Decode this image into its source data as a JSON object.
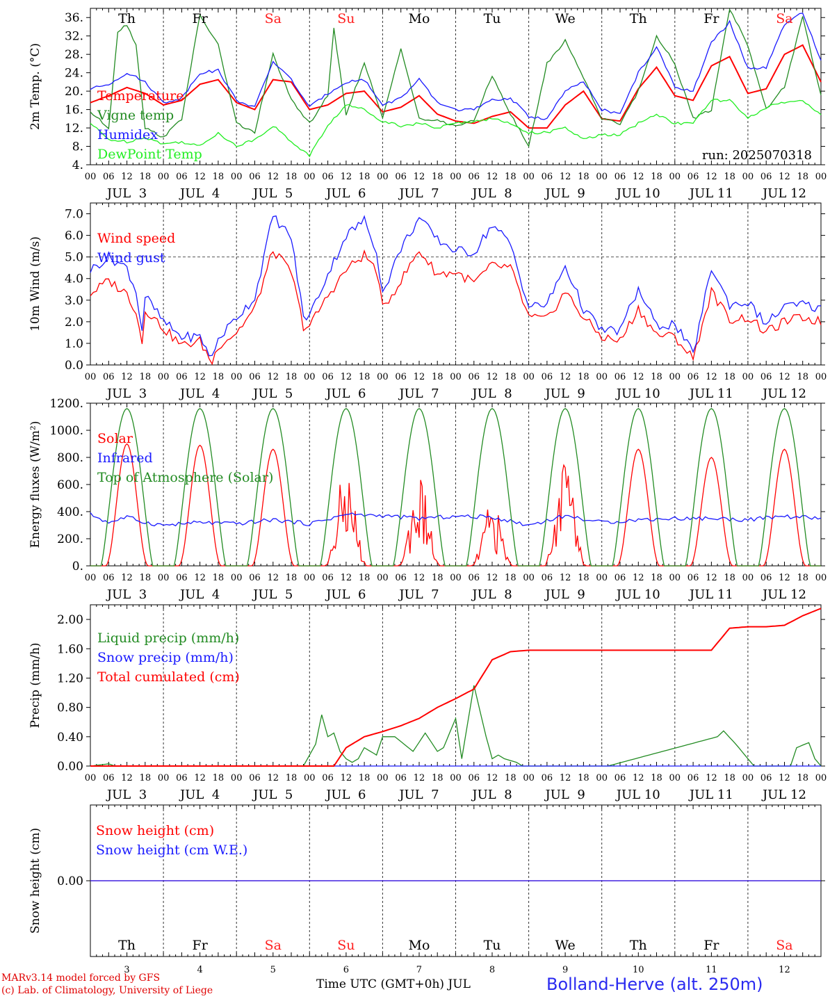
{
  "footer": {
    "model": "MARv3.14 model forced by GFS",
    "lab": "(c) Lab. of Climatology, University of Liege",
    "time_axis": "Time UTC (GMT+0h) JUL",
    "station": "Bolland-Herve (alt. 250m)"
  },
  "run_label": "run: 2025070318",
  "colors": {
    "red": "#ff0000",
    "blue": "#1a1aff",
    "green": "#228b22",
    "lightgreen": "#22ee22",
    "grid": "#000000"
  },
  "days": [
    "3",
    "4",
    "5",
    "6",
    "7",
    "8",
    "9",
    "10",
    "11",
    "12"
  ],
  "day_labels": [
    "JUL  3",
    "JUL  4",
    "JUL  5",
    "JUL  6",
    "JUL  7",
    "JUL  8",
    "JUL  9",
    "JUL 10",
    "JUL 11",
    "JUL 12"
  ],
  "weekdays": [
    {
      "name": "Th",
      "weekend": false
    },
    {
      "name": "Fr",
      "weekend": false
    },
    {
      "name": "Sa",
      "weekend": true
    },
    {
      "name": "Su",
      "weekend": true
    },
    {
      "name": "Mo",
      "weekend": false
    },
    {
      "name": "Tu",
      "weekend": false
    },
    {
      "name": "We",
      "weekend": false
    },
    {
      "name": "Th",
      "weekend": false
    },
    {
      "name": "Fr",
      "weekend": false
    },
    {
      "name": "Sa",
      "weekend": true
    }
  ],
  "hour_ticks": [
    "00",
    "06",
    "12",
    "18"
  ],
  "chart_data": [
    {
      "type": "line",
      "ylabel": "2m Temp. (°C)",
      "ylim": [
        4,
        38
      ],
      "yticks": [
        "4.",
        "8.",
        "12.",
        "16.",
        "20.",
        "24.",
        "28.",
        "32.",
        "36."
      ],
      "x_unit": "hours since JUL 3 00 UTC",
      "series": [
        {
          "name": "Temperature",
          "color": "red",
          "x": [
            0,
            6,
            12,
            18,
            24,
            30,
            36,
            42,
            48,
            54,
            60,
            66,
            72,
            78,
            84,
            90,
            96,
            102,
            108,
            114,
            120,
            126,
            132,
            138,
            144,
            150,
            156,
            162,
            168,
            174,
            180,
            186,
            192,
            198,
            204,
            210,
            216,
            222,
            228,
            234,
            240
          ],
          "y": [
            17.5,
            19,
            20.8,
            19.5,
            17,
            18,
            21.5,
            22.5,
            17.5,
            16,
            22.5,
            22,
            16,
            17,
            19.5,
            20,
            15.5,
            16.5,
            19,
            15,
            13.5,
            13,
            14.5,
            15.5,
            12,
            12,
            17,
            20,
            14,
            13.5,
            20.5,
            25.2,
            19,
            18,
            25.5,
            27.5,
            19.5,
            20.5,
            28,
            30,
            22
          ]
        },
        {
          "name": "Vigne temp",
          "color": "green",
          "x": [
            0,
            6,
            9,
            12,
            15,
            18,
            24,
            30,
            36,
            42,
            48,
            54,
            60,
            66,
            72,
            78,
            80,
            84,
            90,
            96,
            102,
            108,
            114,
            120,
            126,
            132,
            138,
            144,
            150,
            156,
            162,
            168,
            174,
            180,
            186,
            192,
            198,
            204,
            210,
            216,
            222,
            228,
            234,
            240
          ],
          "y": [
            15.5,
            12,
            33,
            34.5,
            30,
            12,
            10,
            14,
            36.5,
            30,
            13,
            11,
            28,
            18,
            13,
            19,
            33.5,
            15,
            26,
            14,
            29.5,
            14,
            13.5,
            12.5,
            13.5,
            23.5,
            15,
            8,
            26,
            31,
            23,
            14,
            13,
            20,
            32,
            26,
            14,
            16,
            38,
            30,
            16,
            21,
            36,
            19
          ]
        },
        {
          "name": "Humidex",
          "color": "blue",
          "x": [
            0,
            6,
            12,
            18,
            24,
            30,
            36,
            42,
            48,
            54,
            60,
            66,
            72,
            78,
            84,
            90,
            96,
            102,
            108,
            114,
            120,
            126,
            132,
            138,
            144,
            150,
            156,
            162,
            168,
            174,
            180,
            186,
            192,
            198,
            204,
            210,
            216,
            222,
            228,
            234,
            240
          ],
          "y": [
            20.5,
            21.5,
            24,
            22,
            17.5,
            18.5,
            24,
            24.5,
            18,
            16.5,
            26.5,
            22.5,
            16.5,
            19.5,
            22,
            22.5,
            17,
            18.5,
            22.5,
            17.5,
            16,
            16,
            18,
            18.5,
            14.5,
            14,
            20,
            22,
            16,
            15,
            24,
            29.5,
            21,
            20,
            30.5,
            35,
            25,
            25,
            34.5,
            37,
            26.5
          ]
        },
        {
          "name": "DewPoint Temp",
          "color": "lightgreen",
          "x": [
            0,
            6,
            12,
            18,
            24,
            30,
            36,
            42,
            48,
            54,
            60,
            66,
            72,
            78,
            84,
            90,
            96,
            102,
            108,
            114,
            120,
            126,
            132,
            138,
            144,
            150,
            156,
            162,
            168,
            174,
            180,
            186,
            192,
            198,
            204,
            210,
            216,
            222,
            228,
            234,
            240
          ],
          "y": [
            13,
            9.5,
            9,
            10,
            8.5,
            9,
            8,
            11,
            8,
            9.5,
            12.5,
            9,
            6,
            12.5,
            17,
            16,
            13.5,
            12.5,
            13,
            12,
            13,
            13.5,
            14,
            13,
            11,
            11,
            12,
            9.5,
            10.5,
            10.5,
            13,
            15,
            13,
            13,
            18,
            18,
            14,
            16.5,
            17.5,
            18,
            15
          ]
        }
      ]
    },
    {
      "type": "line",
      "ylabel": "10m Wind (m/s)",
      "ylim": [
        0,
        7.5
      ],
      "yticks": [
        "0.0",
        "1.0",
        "2.0",
        "3.0",
        "4.0",
        "5.0",
        "6.0",
        "7.0"
      ],
      "x_unit": "hours since JUL 3 00 UTC",
      "series": [
        {
          "name": "Wind speed",
          "color": "red",
          "x": [
            0,
            6,
            12,
            15,
            17,
            18,
            24,
            30,
            36,
            40,
            42,
            48,
            54,
            60,
            66,
            70,
            72,
            78,
            84,
            90,
            94,
            96,
            102,
            108,
            114,
            120,
            126,
            132,
            138,
            144,
            150,
            156,
            162,
            168,
            174,
            180,
            186,
            192,
            198,
            204,
            210,
            216,
            222,
            228,
            234,
            240
          ],
          "y": [
            3.3,
            3.9,
            3.3,
            2.5,
            1.0,
            2.6,
            1.7,
            0.9,
            1.1,
            0.1,
            0.9,
            1.5,
            2.6,
            5.3,
            4.3,
            1.8,
            1.8,
            3.2,
            4.4,
            5.1,
            4.4,
            2.6,
            3.9,
            5.3,
            4.2,
            4.3,
            3.8,
            4.6,
            4.5,
            2.2,
            2.1,
            3.4,
            2.2,
            1.3,
            1.1,
            2.6,
            1.4,
            1.3,
            0.3,
            3.4,
            2.1,
            2.2,
            1.5,
            2.0,
            2.2,
            2.0
          ]
        },
        {
          "name": "Wind gust",
          "color": "blue",
          "x": [
            0,
            6,
            12,
            15,
            17,
            18,
            24,
            30,
            36,
            40,
            42,
            48,
            54,
            60,
            66,
            70,
            72,
            78,
            84,
            90,
            94,
            96,
            102,
            108,
            114,
            120,
            126,
            132,
            138,
            144,
            150,
            156,
            162,
            168,
            174,
            180,
            186,
            192,
            198,
            204,
            210,
            216,
            222,
            228,
            234,
            240
          ],
          "y": [
            4.4,
            5.0,
            4.5,
            3.4,
            1.6,
            3.2,
            2.0,
            1.3,
            1.3,
            0.3,
            1.2,
            2.2,
            3.1,
            6.9,
            5.9,
            2.2,
            2.3,
            4.2,
            6.0,
            6.7,
            5.3,
            3.3,
            5.4,
            6.8,
            5.8,
            5.3,
            5.2,
            6.5,
            5.6,
            2.7,
            2.8,
            4.6,
            2.6,
            1.6,
            1.6,
            3.5,
            1.8,
            1.9,
            0.5,
            4.5,
            2.8,
            2.9,
            1.9,
            2.7,
            2.8,
            2.6
          ]
        }
      ],
      "reference_line": 5.0
    },
    {
      "type": "line",
      "ylabel": "Energy fluxes (W/m²)",
      "ylim": [
        0,
        1200
      ],
      "yticks": [
        "0.",
        "200.",
        "400.",
        "600.",
        "800.",
        "1000.",
        "1200."
      ],
      "x_unit": "hours since JUL 3 00 UTC",
      "series": [
        {
          "name": "Solar",
          "color": "red",
          "daily_peak": [
            900,
            890,
            860,
            740,
            690,
            470,
            840,
            860,
            800,
            860
          ]
        },
        {
          "name": "Infrared",
          "color": "blue",
          "x": [
            0,
            6,
            12,
            18,
            24,
            36,
            48,
            60,
            72,
            84,
            96,
            108,
            120,
            132,
            144,
            156,
            168,
            180,
            192,
            204,
            216,
            228,
            240
          ],
          "y": [
            380,
            320,
            360,
            320,
            300,
            320,
            310,
            340,
            310,
            380,
            370,
            350,
            365,
            360,
            300,
            370,
            320,
            340,
            350,
            350,
            340,
            365,
            350
          ]
        },
        {
          "name": "Top of Atmosphere (Solar)",
          "color": "green",
          "daily_peak": [
            1160,
            1160,
            1160,
            1160,
            1160,
            1160,
            1160,
            1160,
            1160,
            1160
          ]
        }
      ]
    },
    {
      "type": "line",
      "ylabel": "Precip (mm/h)",
      "ylim": [
        0,
        2.2
      ],
      "yticks": [
        "0.00",
        "0.40",
        "0.80",
        "1.20",
        "1.60",
        "2.00"
      ],
      "x_unit": "hours since JUL 3 00 UTC",
      "series": [
        {
          "name": "Liquid precip (mm/h)",
          "color": "green",
          "x": [
            0,
            6,
            8,
            10,
            70,
            74,
            76,
            78,
            80,
            82,
            84,
            86,
            88,
            90,
            94,
            96,
            100,
            106,
            110,
            114,
            116,
            120,
            122,
            126,
            130,
            132,
            134,
            136,
            140,
            142,
            150,
            160,
            170,
            206,
            208,
            212,
            218,
            230,
            232,
            236,
            238,
            240
          ],
          "y": [
            0,
            0.03,
            0,
            0,
            0,
            0.3,
            0.7,
            0.4,
            0.45,
            0.2,
            0.1,
            0.05,
            0.1,
            0.25,
            0.15,
            0.4,
            0.4,
            0.2,
            0.45,
            0.2,
            0.25,
            0.65,
            0.1,
            1.1,
            0.4,
            0.1,
            0.15,
            0.1,
            0.05,
            0,
            0,
            0,
            0,
            0.4,
            0.48,
            0.3,
            0,
            0,
            0.25,
            0.32,
            0.1,
            0
          ]
        },
        {
          "name": "Snow precip (mm/h)",
          "color": "blue",
          "x": [
            0,
            240
          ],
          "y": [
            0,
            0
          ]
        },
        {
          "name": "Total cumulated (cm)",
          "color": "red",
          "x": [
            0,
            80,
            84,
            90,
            96,
            102,
            108,
            114,
            120,
            126,
            132,
            138,
            144,
            150,
            156,
            162,
            168,
            174,
            180,
            186,
            192,
            198,
            204,
            210,
            216,
            222,
            228,
            234,
            240
          ],
          "y": [
            0,
            0,
            0.25,
            0.4,
            0.47,
            0.55,
            0.65,
            0.8,
            0.92,
            1.05,
            1.45,
            1.56,
            1.58,
            1.58,
            1.58,
            1.58,
            1.58,
            1.58,
            1.58,
            1.58,
            1.58,
            1.58,
            1.58,
            1.88,
            1.9,
            1.9,
            1.92,
            2.05,
            2.15
          ]
        }
      ]
    },
    {
      "type": "line",
      "ylabel": "Snow height (cm)",
      "ylim": [
        -1,
        1
      ],
      "yticks": [
        "0.00"
      ],
      "x_unit": "hours since JUL 3 00 UTC",
      "series": [
        {
          "name": "Snow height (cm)",
          "color": "red",
          "x": [
            0,
            240
          ],
          "y": [
            0,
            0
          ]
        },
        {
          "name": "Snow height (cm W.E.)",
          "color": "blue",
          "x": [
            0,
            240
          ],
          "y": [
            0,
            0
          ]
        }
      ]
    }
  ]
}
